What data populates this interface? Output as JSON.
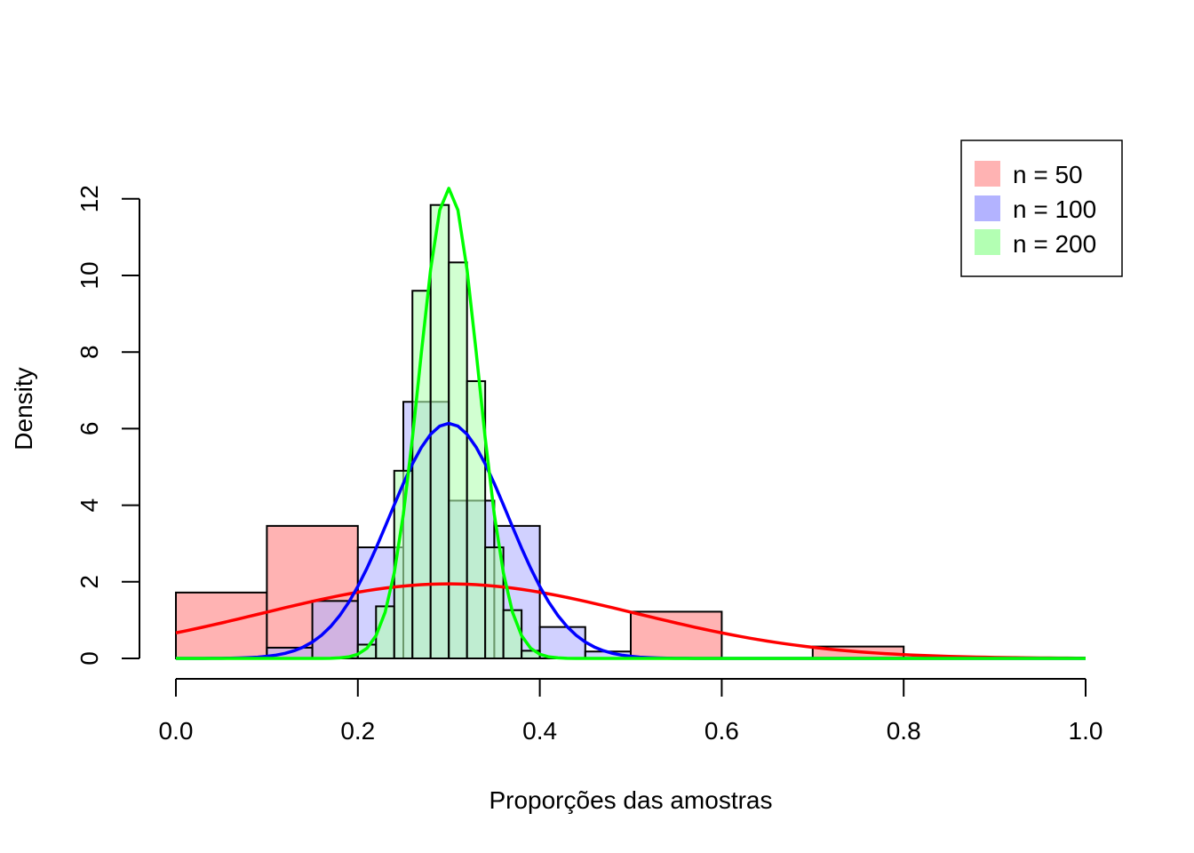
{
  "chart_data": {
    "type": "bar",
    "title": "",
    "xlabel": "Proporções das amostras",
    "ylabel": "Density",
    "xlim": [
      0,
      1
    ],
    "ylim": [
      0,
      12.3
    ],
    "x_ticks": [
      "0.0",
      "0.2",
      "0.4",
      "0.6",
      "0.8",
      "1.0"
    ],
    "y_ticks": [
      "0",
      "2",
      "4",
      "6",
      "8",
      "10",
      "12"
    ],
    "legend_position": "top-right",
    "series": [
      {
        "name": "n = 50",
        "fill": "#FFB3B3",
        "line_color": "#FF0000",
        "bins": [
          {
            "x0": 0.0,
            "x1": 0.1,
            "density": 1.72
          },
          {
            "x0": 0.1,
            "x1": 0.2,
            "density": 3.46
          },
          {
            "x0": 0.2,
            "x1": 0.3,
            "density": 0.0
          },
          {
            "x0": 0.3,
            "x1": 0.4,
            "density": 0.0
          },
          {
            "x0": 0.4,
            "x1": 0.5,
            "density": 0.0
          },
          {
            "x0": 0.5,
            "x1": 0.6,
            "density": 1.22
          },
          {
            "x0": 0.6,
            "x1": 0.7,
            "density": 0.0
          },
          {
            "x0": 0.7,
            "x1": 0.8,
            "density": 0.31
          },
          {
            "x0": 0.8,
            "x1": 0.9,
            "density": 0.0
          },
          {
            "x0": 0.9,
            "x1": 1.0,
            "density": 0.0
          }
        ],
        "curve": {
          "mean": 0.3,
          "sd": 0.205
        }
      },
      {
        "name": "n = 100",
        "fill": "#B3B3FF",
        "line_color": "#0000FF",
        "bins": [
          {
            "x0": 0.1,
            "x1": 0.15,
            "density": 0.28
          },
          {
            "x0": 0.15,
            "x1": 0.2,
            "density": 1.5
          },
          {
            "x0": 0.2,
            "x1": 0.25,
            "density": 2.9
          },
          {
            "x0": 0.25,
            "x1": 0.3,
            "density": 6.7
          },
          {
            "x0": 0.3,
            "x1": 0.35,
            "density": 4.12
          },
          {
            "x0": 0.35,
            "x1": 0.4,
            "density": 3.46
          },
          {
            "x0": 0.4,
            "x1": 0.45,
            "density": 0.82
          },
          {
            "x0": 0.45,
            "x1": 0.5,
            "density": 0.18
          }
        ],
        "curve": {
          "mean": 0.3,
          "sd": 0.065
        }
      },
      {
        "name": "n = 200",
        "fill": "#B3FFB3",
        "line_color": "#00FF00",
        "bins": [
          {
            "x0": 0.2,
            "x1": 0.22,
            "density": 0.36
          },
          {
            "x0": 0.22,
            "x1": 0.24,
            "density": 1.36
          },
          {
            "x0": 0.24,
            "x1": 0.26,
            "density": 4.9
          },
          {
            "x0": 0.26,
            "x1": 0.28,
            "density": 9.6
          },
          {
            "x0": 0.28,
            "x1": 0.3,
            "density": 11.84
          },
          {
            "x0": 0.3,
            "x1": 0.32,
            "density": 10.34
          },
          {
            "x0": 0.32,
            "x1": 0.34,
            "density": 7.24
          },
          {
            "x0": 0.34,
            "x1": 0.36,
            "density": 2.9
          },
          {
            "x0": 0.36,
            "x1": 0.38,
            "density": 1.26
          },
          {
            "x0": 0.38,
            "x1": 0.4,
            "density": 0.2
          }
        ],
        "curve": {
          "mean": 0.3,
          "sd": 0.0325
        }
      }
    ]
  }
}
